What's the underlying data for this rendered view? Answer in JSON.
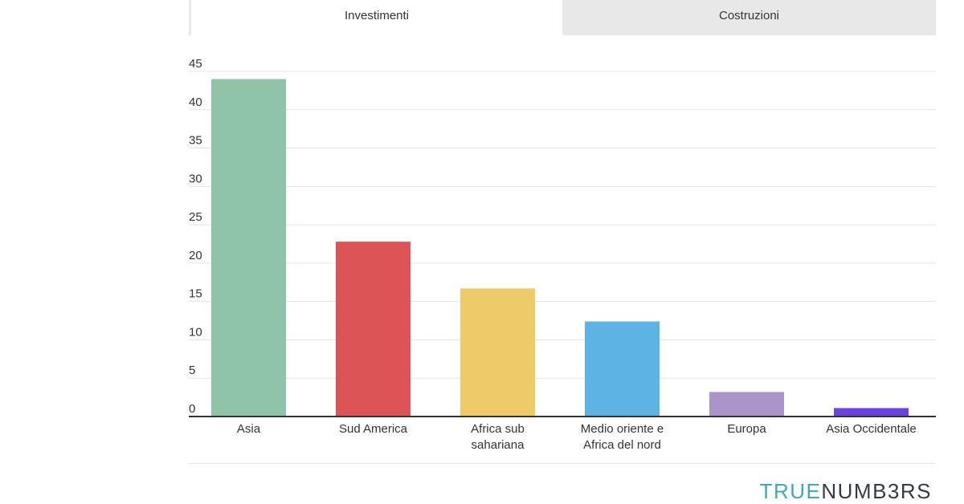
{
  "tabs": [
    {
      "label": "Investimenti",
      "active": true
    },
    {
      "label": "Costruzioni",
      "active": false
    }
  ],
  "brand": {
    "part1": "TRUE",
    "part2": "NUMB3RS",
    "colors": {
      "part1": "#3fa9b5",
      "part2": "#333b44"
    }
  },
  "chart_data": {
    "type": "bar",
    "title": "",
    "xlabel": "",
    "ylabel": "",
    "ylim": [
      0,
      45
    ],
    "yticks": [
      0,
      5,
      10,
      15,
      20,
      25,
      30,
      35,
      40,
      45
    ],
    "grid": true,
    "legend": "none",
    "categories": [
      [
        "Asia"
      ],
      [
        "Sud America"
      ],
      [
        "Africa sub",
        "sahariana"
      ],
      [
        "Medio oriente e",
        "Africa del nord"
      ],
      [
        "Europa"
      ],
      [
        "Asia Occidentale"
      ]
    ],
    "values": [
      44,
      22.8,
      16.7,
      12.4,
      3.2,
      1.1
    ],
    "colors": [
      "#8fc4a8",
      "#dc5456",
      "#eeca69",
      "#5db4e4",
      "#aa94c9",
      "#6b44e0"
    ]
  }
}
